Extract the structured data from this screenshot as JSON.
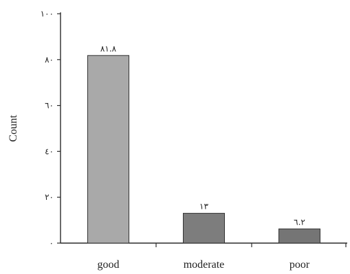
{
  "chart_data": {
    "type": "bar",
    "title": "",
    "xlabel": "",
    "ylabel": "Count",
    "ylim": [
      0,
      100
    ],
    "yticks": [
      0,
      20,
      40,
      60,
      80,
      100
    ],
    "ytick_labels": [
      "٠",
      "٢٠",
      "٤٠",
      "٦٠",
      "٨٠",
      "١٠٠"
    ],
    "categories": [
      "good",
      "moderate",
      "poor"
    ],
    "values": [
      81.8,
      13,
      6.2
    ],
    "data_labels": [
      "٨١.٨",
      "١٣",
      "٦.٢"
    ],
    "grid": false,
    "legend": "none",
    "bar_colors": [
      "#a9a9a9",
      "#7d7d7d",
      "#757575"
    ]
  }
}
